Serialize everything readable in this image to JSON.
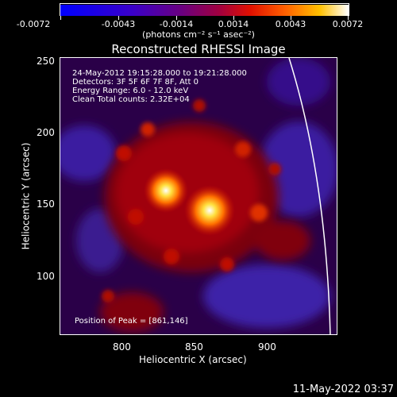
{
  "colorbar": {
    "tick_labels": [
      "-0.0072",
      "-0.0043",
      "-0.0014",
      "0.0014",
      "0.0043",
      "0.0072"
    ],
    "units": "(photons cm⁻² s⁻¹ asec⁻²)"
  },
  "plot": {
    "title": "Reconstructed RHESSI Image",
    "info_lines": [
      "24-May-2012 19:15:28.000 to 19:21:28.000",
      "Detectors: 3F 5F 6F 7F 8F, Att 0",
      "Energy Range: 6.0 - 12.0 keV",
      "Clean    Total counts: 2.32E+04"
    ],
    "peak_text": "Position of Peak = [861,146]",
    "xlabel": "Heliocentric X (arcsec)",
    "ylabel": "Heliocentric Y (arcsec)",
    "x_ticks": [
      "800",
      "850",
      "900"
    ],
    "y_ticks": [
      "250",
      "200",
      "150",
      "100"
    ]
  },
  "timestamp": "11-May-2022 03:37",
  "colors": {
    "background": "#000000",
    "colormap": [
      "#0000ff",
      "#5a0096",
      "#b40032",
      "#ff5000",
      "#ffc800",
      "#ffffff"
    ]
  }
}
